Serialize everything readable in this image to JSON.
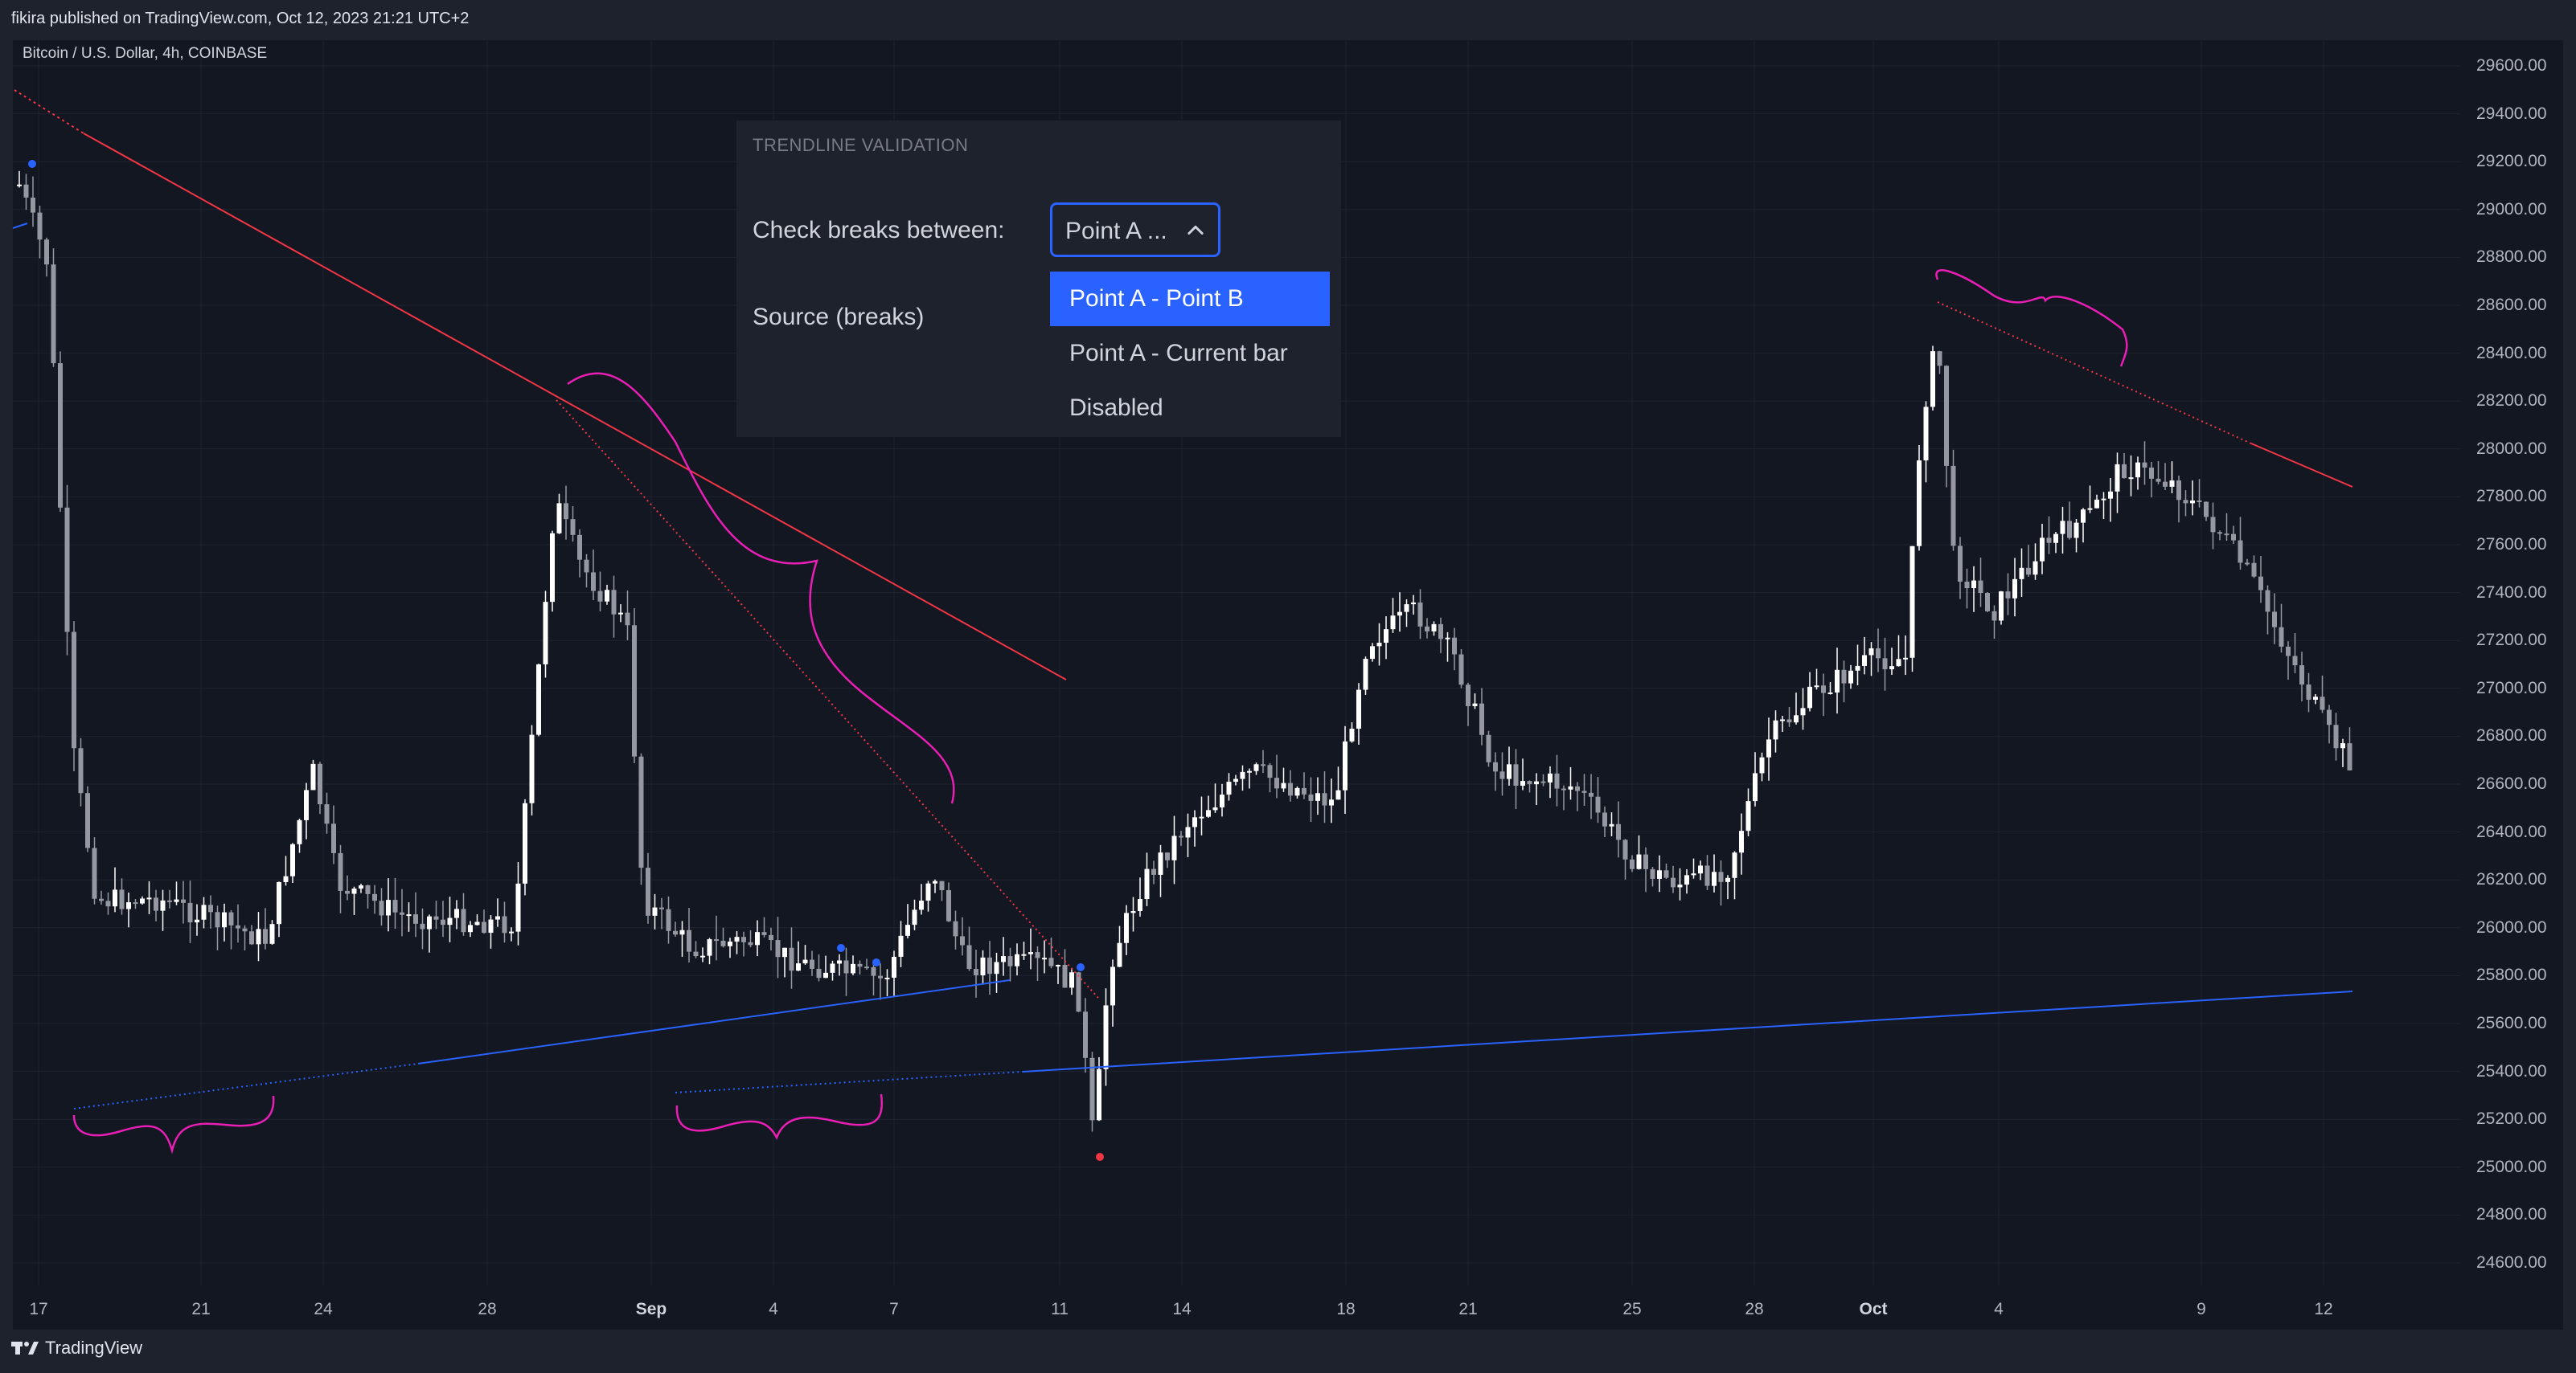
{
  "header": {
    "published_text": "fikira published on TradingView.com, Oct 12, 2023 21:21 UTC+2"
  },
  "chart": {
    "symbol_text": "Bitcoin / U.S. Dollar, 4h, COINBASE",
    "price_axis": [
      "29600.00",
      "29400.00",
      "29200.00",
      "29000.00",
      "28800.00",
      "28600.00",
      "28400.00",
      "28200.00",
      "28000.00",
      "27800.00",
      "27600.00",
      "27400.00",
      "27200.00",
      "27000.00",
      "26800.00",
      "26600.00",
      "26400.00",
      "26200.00",
      "26000.00",
      "25800.00",
      "25600.00",
      "25400.00",
      "25200.00",
      "25000.00",
      "24800.00",
      "24600.00"
    ],
    "date_axis": [
      {
        "label": "17",
        "bold": false
      },
      {
        "label": "21",
        "bold": false
      },
      {
        "label": "24",
        "bold": false
      },
      {
        "label": "28",
        "bold": false
      },
      {
        "label": "Sep",
        "bold": true
      },
      {
        "label": "4",
        "bold": false
      },
      {
        "label": "7",
        "bold": false
      },
      {
        "label": "11",
        "bold": false
      },
      {
        "label": "14",
        "bold": false
      },
      {
        "label": "18",
        "bold": false
      },
      {
        "label": "21",
        "bold": false
      },
      {
        "label": "25",
        "bold": false
      },
      {
        "label": "28",
        "bold": false
      },
      {
        "label": "Oct",
        "bold": true
      },
      {
        "label": "4",
        "bold": false
      },
      {
        "label": "9",
        "bold": false
      },
      {
        "label": "12",
        "bold": false
      }
    ],
    "colors": {
      "background": "#131722",
      "bull_candle": "#ffffff",
      "bear_candle": "#9598a1",
      "resistance_line": "#f23645",
      "support_line": "#2962ff",
      "annotation": "#e91eb5"
    }
  },
  "settings_panel": {
    "section_title": "TRENDLINE VALIDATION",
    "check_breaks_label": "Check breaks between:",
    "source_label": "Source (breaks)",
    "select_value": "Point A ...",
    "options": [
      {
        "label": "Point A - Point B",
        "selected": true
      },
      {
        "label": "Point A - Current bar",
        "selected": false
      },
      {
        "label": "Disabled",
        "selected": false
      }
    ]
  },
  "footer": {
    "brand": "TradingView"
  }
}
